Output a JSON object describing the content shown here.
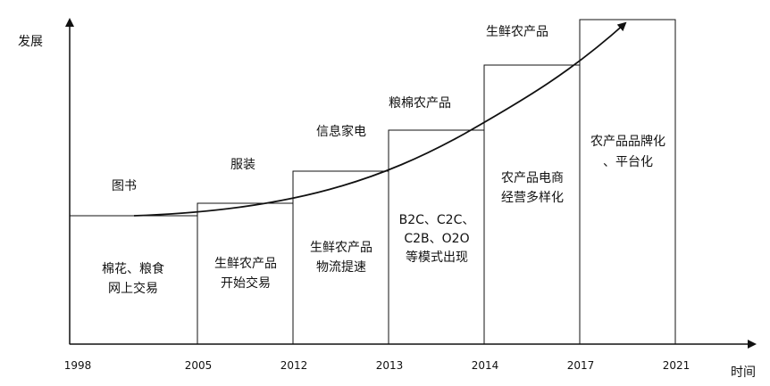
{
  "axes": {
    "y_label": "发展",
    "x_label": "时间"
  },
  "years": [
    "1998",
    "2005",
    "2012",
    "2013",
    "2014",
    "2017",
    "2021"
  ],
  "stages": [
    {
      "box_lines": [
        "棉花、粮食",
        "网上交易"
      ],
      "above": "图书"
    },
    {
      "box_lines": [
        "生鲜农产品",
        "开始交易"
      ],
      "above": "服装"
    },
    {
      "box_lines": [
        "生鲜农产品",
        "物流提速"
      ],
      "above": "信息家电"
    },
    {
      "box_lines": [
        "B2C、C2C、",
        "C2B、O2O",
        "等模式出现"
      ],
      "above": "粮棉农产品"
    },
    {
      "box_lines": [
        "农产品电商",
        "经营多样化"
      ],
      "above": "生鲜农产品"
    },
    {
      "box_lines": [
        "农产品品牌化",
        "、平台化"
      ],
      "above": ""
    }
  ]
}
